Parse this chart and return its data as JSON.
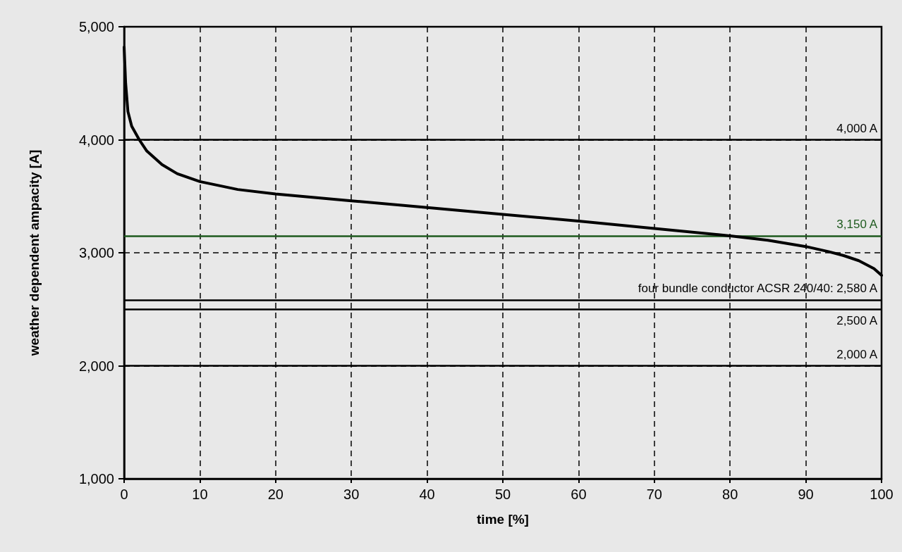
{
  "chart_data": {
    "type": "line",
    "xlabel": "time [%]",
    "ylabel": "weather dependent ampacity [A]",
    "x": [
      0,
      0.2,
      0.5,
      1,
      2,
      3,
      5,
      7,
      10,
      15,
      20,
      30,
      40,
      50,
      60,
      70,
      80,
      85,
      90,
      93,
      95,
      97,
      99,
      100
    ],
    "series": [
      {
        "color": "#000000",
        "values": [
          4820,
          4500,
          4250,
          4120,
          4000,
          3900,
          3780,
          3700,
          3630,
          3560,
          3520,
          3460,
          3400,
          3340,
          3280,
          3215,
          3150,
          3110,
          3055,
          3010,
          2975,
          2930,
          2860,
          2800
        ]
      }
    ],
    "xlim": [
      0,
      100
    ],
    "xticks": [
      0,
      10,
      20,
      30,
      40,
      50,
      60,
      70,
      80,
      90,
      100
    ],
    "ylim": [
      1000,
      5000
    ],
    "yticks": [
      {
        "value": 1000,
        "label": "1,000"
      },
      {
        "value": 2000,
        "label": "2,000"
      },
      {
        "value": 3000,
        "label": "3,000"
      },
      {
        "value": 4000,
        "label": "4,000"
      },
      {
        "value": 5000,
        "label": "5,000"
      }
    ],
    "ref_lines": [
      {
        "axis": "y",
        "value": 4000,
        "label": "4,000 A",
        "color": "#000000"
      },
      {
        "axis": "y",
        "value": 3150,
        "label": "3,150 A",
        "color": "#1e5a1e"
      },
      {
        "axis": "y",
        "value": 2580,
        "label": "four bundle conductor ACSR 240/40: 2,580 A",
        "color": "#000000"
      },
      {
        "axis": "y",
        "value": 2500,
        "label": "2,500 A",
        "color": "#000000"
      },
      {
        "axis": "y",
        "value": 2000,
        "label": "2,000 A",
        "color": "#000000"
      }
    ],
    "grid": true,
    "marker": "none",
    "line_style": "solid"
  }
}
